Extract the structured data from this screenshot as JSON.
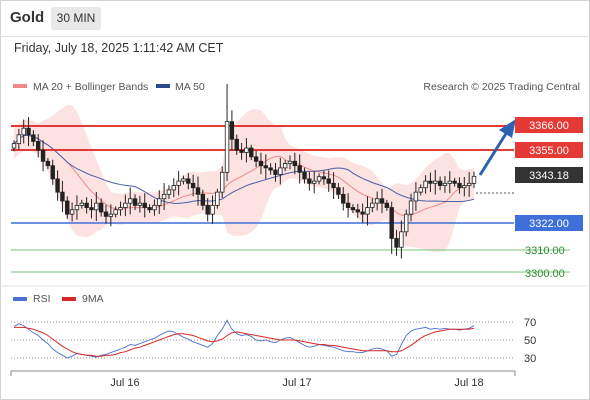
{
  "header": {
    "asset": "Gold",
    "timeframe": "30 MIN",
    "datetime": "Friday, July 18, 2025 1:11:42 AM CET"
  },
  "legend": {
    "ma20_bb": "MA 20 + Bollinger Bands",
    "ma50": "MA 50",
    "credit": "Research © 2025 Trading Central"
  },
  "rsi_legend": {
    "rsi": "RSI",
    "ma": "9MA"
  },
  "colors": {
    "resistance": "#e53935",
    "support": "#3f6fd8",
    "target_line": "#2e8b2e",
    "candle": "#222222",
    "ma20": "#f08a8a",
    "bb_fill": "#fde2e2",
    "ma50": "#4a5fa8",
    "arrow": "#2c62b0",
    "rsi": "#4c6fd0",
    "rsi_ma": "#d62828"
  },
  "chart_data": {
    "type": "candlestick",
    "x_ticks": [
      "Jul 16",
      "Jul 17",
      "Jul 18"
    ],
    "ylim": [
      3290,
      3420
    ],
    "current_price": 3343.18,
    "levels": [
      {
        "value": 3366.0,
        "label": "3366.00",
        "kind": "resistance"
      },
      {
        "value": 3355.0,
        "label": "3355.00",
        "kind": "resistance"
      },
      {
        "value": 3343.18,
        "label": "3343.18",
        "kind": "current"
      },
      {
        "value": 3322.0,
        "label": "3322.00",
        "kind": "support"
      },
      {
        "value": 3310.0,
        "label": "3310.00",
        "kind": "target"
      },
      {
        "value": 3300.0,
        "label": "3300.00",
        "kind": "target"
      }
    ],
    "ohlc_close_path": [
      3358,
      3362,
      3365,
      3362,
      3359,
      3355,
      3350,
      3348,
      3342,
      3336,
      3332,
      3326,
      3328,
      3330,
      3331,
      3329,
      3328,
      3331,
      3327,
      3325,
      3326,
      3328,
      3329,
      3331,
      3333,
      3330,
      3331,
      3329,
      3328,
      3330,
      3333,
      3335,
      3337,
      3339,
      3341,
      3342,
      3340,
      3338,
      3335,
      3330,
      3326,
      3330,
      3336,
      3345,
      3368,
      3360,
      3355,
      3354,
      3356,
      3352,
      3350,
      3348,
      3347,
      3346,
      3344,
      3347,
      3349,
      3350,
      3348,
      3345,
      3342,
      3340,
      3341,
      3343,
      3342,
      3340,
      3338,
      3335,
      3331,
      3329,
      3328,
      3327,
      3326,
      3329,
      3331,
      3333,
      3331,
      3329,
      3315,
      3311,
      3318,
      3326,
      3332,
      3336,
      3338,
      3341,
      3340,
      3341,
      3339,
      3340,
      3341,
      3340,
      3338,
      3339,
      3340,
      3343.18
    ],
    "rsi": {
      "ylim": [
        20,
        80
      ],
      "levels": [
        70,
        50,
        30
      ],
      "series_rsi": [
        65,
        68,
        66,
        62,
        58,
        55,
        50,
        46,
        40,
        36,
        33,
        30,
        32,
        35,
        34,
        33,
        32,
        31,
        33,
        34,
        36,
        38,
        40,
        42,
        45,
        44,
        46,
        48,
        50,
        52,
        55,
        58,
        60,
        59,
        56,
        53,
        51,
        48,
        46,
        44,
        42,
        46,
        55,
        62,
        72,
        62,
        57,
        55,
        56,
        54,
        50,
        49,
        50,
        48,
        47,
        50,
        52,
        53,
        50,
        47,
        44,
        42,
        43,
        45,
        44,
        43,
        42,
        40,
        38,
        37,
        37,
        36,
        36,
        38,
        40,
        41,
        40,
        38,
        32,
        34,
        45,
        55,
        60,
        62,
        63,
        64,
        62,
        63,
        62,
        63,
        62,
        62,
        61,
        62,
        63,
        66
      ],
      "series_ma": [
        64,
        64,
        64,
        63,
        62,
        60,
        58,
        55,
        51,
        47,
        43,
        40,
        37,
        35,
        34,
        33,
        33,
        32,
        32,
        33,
        33,
        34,
        36,
        37,
        39,
        41,
        42,
        44,
        46,
        48,
        50,
        52,
        54,
        56,
        57,
        57,
        56,
        55,
        53,
        51,
        49,
        48,
        49,
        51,
        55,
        58,
        59,
        58,
        57,
        56,
        55,
        54,
        53,
        52,
        51,
        50,
        50,
        50,
        50,
        49,
        48,
        47,
        46,
        45,
        45,
        44,
        44,
        43,
        42,
        41,
        40,
        39,
        38,
        38,
        38,
        38,
        38,
        38,
        37,
        37,
        38,
        41,
        44,
        48,
        52,
        55,
        57,
        59,
        60,
        61,
        62,
        62,
        62,
        62,
        62,
        63
      ]
    }
  },
  "price_labels": {
    "r1": "3366.00",
    "r2": "3355.00",
    "current": "3343.18",
    "s1": "3322.00",
    "t1": "3310.00",
    "t2": "3300.00"
  },
  "rsi_ticks": {
    "t70": "70",
    "t50": "50",
    "t30": "30"
  },
  "x_ticks": {
    "t1": "Jul 16",
    "t2": "Jul 17",
    "t3": "Jul 18"
  }
}
